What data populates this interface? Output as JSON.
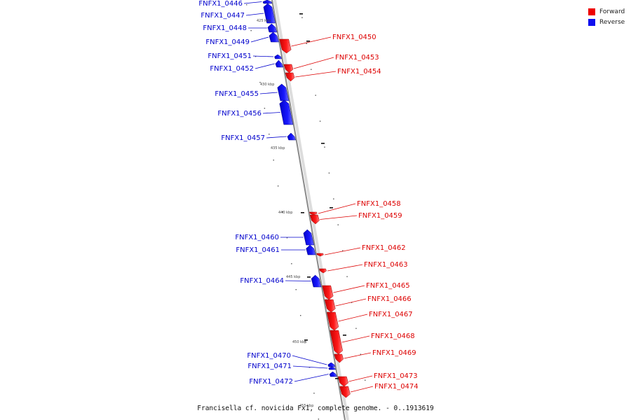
{
  "caption": "Francisella cf. novicida Fx1, complete genome. - 0..1913619",
  "legend": [
    {
      "label": "Forward",
      "color": "#ee0000"
    },
    {
      "label": "Reverse",
      "color": "#1010ee"
    }
  ],
  "kbp_labels": [
    "425 kbp",
    "430 kbp",
    "435 kbp",
    "440 kbp",
    "445 kbp",
    "450 kbp",
    "455 kbp"
  ],
  "genes": [
    {
      "label": "FNFX1_0446",
      "strand": "reverse"
    },
    {
      "label": "FNFX1_0447",
      "strand": "reverse"
    },
    {
      "label": "FNFX1_0448",
      "strand": "reverse"
    },
    {
      "label": "FNFX1_0449",
      "strand": "reverse"
    },
    {
      "label": "FNFX1_0450",
      "strand": "forward"
    },
    {
      "label": "FNFX1_0451",
      "strand": "reverse"
    },
    {
      "label": "FNFX1_0452",
      "strand": "reverse"
    },
    {
      "label": "FNFX1_0453",
      "strand": "forward"
    },
    {
      "label": "FNFX1_0454",
      "strand": "forward"
    },
    {
      "label": "FNFX1_0455",
      "strand": "reverse"
    },
    {
      "label": "FNFX1_0456",
      "strand": "reverse"
    },
    {
      "label": "FNFX1_0457",
      "strand": "reverse"
    },
    {
      "label": "FNFX1_0458",
      "strand": "forward"
    },
    {
      "label": "FNFX1_0459",
      "strand": "forward"
    },
    {
      "label": "FNFX1_0460",
      "strand": "reverse"
    },
    {
      "label": "FNFX1_0461",
      "strand": "reverse"
    },
    {
      "label": "FNFX1_0462",
      "strand": "forward"
    },
    {
      "label": "FNFX1_0463",
      "strand": "forward"
    },
    {
      "label": "FNFX1_0464",
      "strand": "reverse"
    },
    {
      "label": "FNFX1_0465",
      "strand": "forward"
    },
    {
      "label": "FNFX1_0466",
      "strand": "forward"
    },
    {
      "label": "FNFX1_0467",
      "strand": "forward"
    },
    {
      "label": "FNFX1_0468",
      "strand": "forward"
    },
    {
      "label": "FNFX1_0469",
      "strand": "forward"
    },
    {
      "label": "FNFX1_0470",
      "strand": "reverse"
    },
    {
      "label": "FNFX1_0471",
      "strand": "reverse"
    },
    {
      "label": "FNFX1_0472",
      "strand": "reverse"
    },
    {
      "label": "FNFX1_0473",
      "strand": "forward"
    },
    {
      "label": "FNFX1_0474",
      "strand": "forward"
    }
  ]
}
